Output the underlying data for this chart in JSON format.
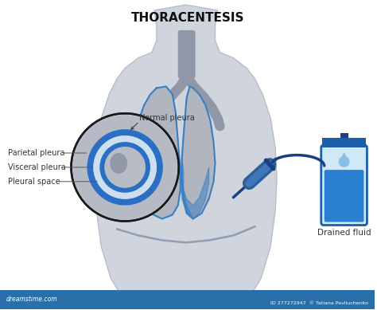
{
  "title": "THORACENTESIS",
  "title_fontsize": 11,
  "title_fontweight": "bold",
  "bg_color": "#ffffff",
  "body_color": "#d0d4dc",
  "body_outline": "#b8bcc8",
  "lung_color": "#b0b5c0",
  "lung_outline": "#3a7fc1",
  "airway_color": "#9098a8",
  "circle_bg": "#c8ccd4",
  "circle_outline": "#222222",
  "parietal_color": "#2a6fc4",
  "pleural_space_color": "#c8d8e8",
  "needle_color": "#2a5fa0",
  "tube_color": "#1a3f80",
  "bag_outline_color": "#1a5faa",
  "bag_light_color": "#c8e4f8",
  "fluid_fill_color": "#2a7fd0",
  "label_color": "#333333",
  "label_fontsize": 7,
  "labels": {
    "normal_pleura": "Normal pleura",
    "parietal_pleura": "Parietal pleura",
    "visceral_pleura": "Visceral pleura",
    "pleural_space": "Pleural space",
    "drained_fluid": "Drained fluid"
  }
}
